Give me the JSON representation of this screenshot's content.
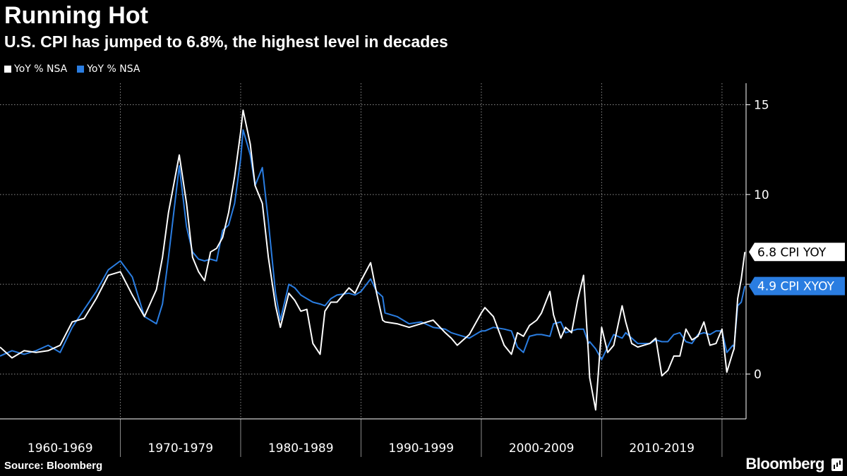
{
  "chart_data": {
    "type": "line",
    "title": "Running Hot",
    "subtitle": "U.S. CPI has jumped to 6.8%, the highest level in decades",
    "source": "Source: Bloomberg",
    "brand": "Bloomberg",
    "ylim": [
      -2.5,
      16.2
    ],
    "y_ticks": [
      0,
      5,
      10,
      15
    ],
    "x_ticks": [
      "1960-1969",
      "1970-1979",
      "1980-1989",
      "1990-1999",
      "2000-2009",
      "2010-2019"
    ],
    "xlim": [
      1960,
      2022
    ],
    "colors": {
      "cpi": "#ffffff",
      "core": "#2a7de1"
    },
    "series": [
      {
        "name": "YoY % NSA",
        "key": "cpi",
        "callout": "6.8 CPI YOY",
        "x": [
          1960,
          1961,
          1962,
          1963,
          1964,
          1965,
          1966,
          1967,
          1968,
          1969,
          1970,
          1971,
          1972,
          1973,
          1973.5,
          1974,
          1974.9,
          1975.5,
          1976,
          1976.5,
          1977,
          1977.5,
          1978,
          1978.5,
          1979,
          1979.5,
          1980,
          1980.2,
          1980.8,
          1981.2,
          1981.8,
          1982.3,
          1982.9,
          1983.3,
          1984,
          1984.5,
          1985,
          1985.5,
          1986,
          1986.6,
          1987,
          1987.5,
          1988,
          1989,
          1989.5,
          1990,
          1990.8,
          1991.3,
          1991.8,
          1992,
          1993,
          1994,
          1995,
          1996,
          1997,
          1997.5,
          1998,
          1999,
          2000,
          2000.3,
          2001,
          2001.9,
          2002.5,
          2003,
          2003.5,
          2004,
          2004.6,
          2005,
          2005.7,
          2006,
          2006.6,
          2007,
          2007.5,
          2008,
          2008.5,
          2008.9,
          2009,
          2009.5,
          2010,
          2010.5,
          2011,
          2011.7,
          2012,
          2012.5,
          2013,
          2014,
          2014.5,
          2015,
          2015.5,
          2016,
          2016.5,
          2017,
          2017.5,
          2018,
          2018.5,
          2019,
          2019.5,
          2020,
          2020.4,
          2020.9,
          2021,
          2021.3,
          2021.6,
          2021.9
        ],
        "values": [
          1.5,
          0.9,
          1.3,
          1.2,
          1.3,
          1.6,
          2.9,
          3.1,
          4.2,
          5.5,
          5.7,
          4.4,
          3.2,
          4.7,
          6.5,
          9.0,
          12.2,
          9.5,
          6.5,
          5.7,
          5.2,
          6.8,
          7.0,
          7.6,
          9.0,
          11.0,
          13.5,
          14.7,
          12.8,
          10.5,
          9.5,
          6.5,
          3.8,
          2.6,
          4.5,
          4.1,
          3.5,
          3.6,
          1.7,
          1.1,
          3.5,
          4.0,
          4.0,
          4.8,
          4.5,
          5.2,
          6.2,
          4.5,
          3.0,
          2.9,
          2.8,
          2.6,
          2.8,
          3.0,
          2.3,
          2.0,
          1.6,
          2.2,
          3.4,
          3.7,
          3.2,
          1.6,
          1.1,
          2.3,
          2.1,
          2.7,
          3.0,
          3.4,
          4.6,
          3.3,
          2.0,
          2.6,
          2.3,
          4.1,
          5.5,
          1.1,
          -0.2,
          -2.0,
          2.6,
          1.2,
          1.6,
          3.8,
          2.9,
          1.7,
          1.5,
          1.7,
          2.0,
          -0.1,
          0.2,
          1.0,
          1.0,
          2.5,
          1.9,
          2.1,
          2.9,
          1.6,
          1.7,
          2.5,
          0.1,
          1.2,
          1.4,
          4.2,
          5.3,
          6.8
        ]
      },
      {
        "name": "YoY % NSA",
        "key": "core",
        "callout": "4.9 CPI XYOY",
        "x": [
          1960,
          1961,
          1962,
          1963,
          1964,
          1965,
          1966,
          1967,
          1968,
          1969,
          1970,
          1971,
          1972,
          1973,
          1973.5,
          1974,
          1974.9,
          1975.5,
          1976,
          1976.5,
          1977,
          1977.5,
          1978,
          1978.5,
          1979,
          1979.5,
          1980,
          1980.2,
          1980.8,
          1981.2,
          1981.8,
          1982.3,
          1982.9,
          1983.3,
          1984,
          1984.5,
          1985,
          1985.5,
          1986,
          1986.6,
          1987,
          1987.5,
          1988,
          1989,
          1989.5,
          1990,
          1990.8,
          1991.3,
          1991.8,
          1992,
          1993,
          1994,
          1995,
          1996,
          1997,
          1997.5,
          1998,
          1999,
          2000,
          2000.3,
          2001,
          2001.9,
          2002.5,
          2003,
          2003.5,
          2004,
          2004.6,
          2005,
          2005.7,
          2006,
          2006.6,
          2007,
          2007.5,
          2008,
          2008.5,
          2008.9,
          2009,
          2009.5,
          2010,
          2010.5,
          2011,
          2011.7,
          2012,
          2012.5,
          2013,
          2014,
          2014.5,
          2015,
          2015.5,
          2016,
          2016.5,
          2017,
          2017.5,
          2018,
          2018.5,
          2019,
          2019.5,
          2020,
          2020.4,
          2020.9,
          2021,
          2021.3,
          2021.6,
          2021.9
        ],
        "values": [
          1.0,
          1.3,
          1.1,
          1.3,
          1.6,
          1.2,
          2.6,
          3.6,
          4.6,
          5.8,
          6.3,
          5.4,
          3.2,
          2.8,
          3.9,
          6.5,
          11.6,
          8.2,
          6.8,
          6.4,
          6.3,
          6.4,
          6.3,
          8.0,
          8.3,
          9.5,
          12.0,
          13.6,
          12.2,
          10.5,
          11.5,
          8.5,
          4.5,
          3.0,
          5.0,
          4.8,
          4.4,
          4.2,
          4.0,
          3.9,
          3.8,
          4.2,
          4.4,
          4.5,
          4.4,
          4.6,
          5.3,
          4.6,
          4.3,
          3.4,
          3.2,
          2.8,
          2.9,
          2.6,
          2.5,
          2.3,
          2.2,
          2.0,
          2.4,
          2.4,
          2.6,
          2.5,
          2.4,
          1.5,
          1.2,
          2.1,
          2.2,
          2.2,
          2.1,
          2.8,
          2.9,
          2.3,
          2.4,
          2.5,
          2.5,
          1.7,
          1.8,
          1.4,
          0.8,
          1.5,
          2.2,
          2.0,
          2.3,
          2.0,
          1.7,
          1.7,
          1.9,
          1.8,
          1.8,
          2.2,
          2.3,
          1.8,
          1.7,
          2.2,
          2.3,
          2.2,
          2.4,
          2.4,
          1.2,
          1.6,
          1.5,
          3.8,
          4.0,
          4.9
        ]
      }
    ]
  }
}
